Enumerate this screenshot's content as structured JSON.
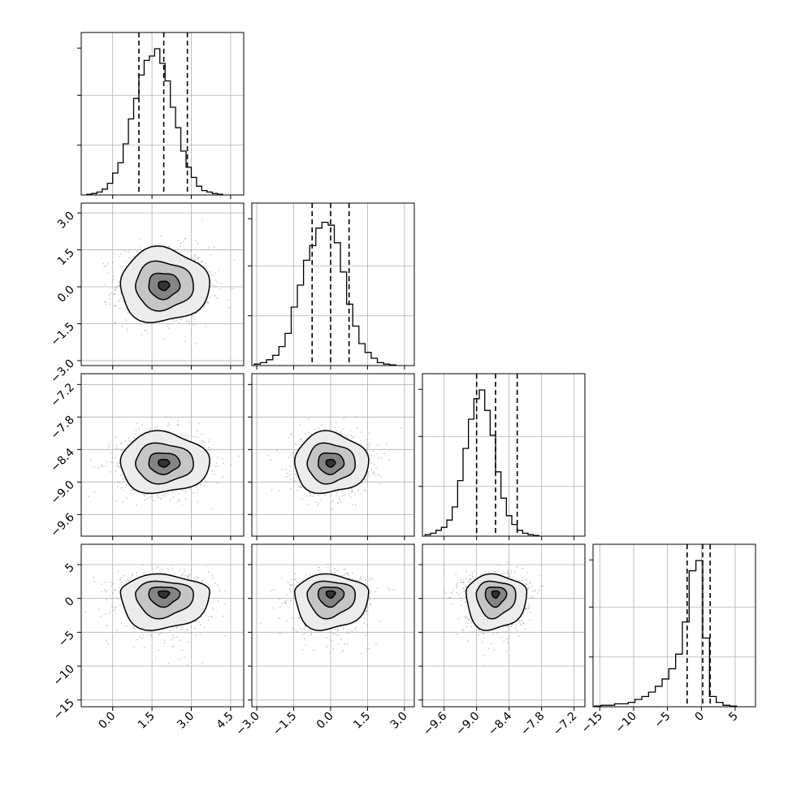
{
  "chart_data": {
    "type": "corner",
    "parameters": 4,
    "style": {
      "background": "#ffffff",
      "axes_color": "#000000",
      "grid_color": "#b0b0b0",
      "scatter_color": "#9e9e9e",
      "grid": true,
      "quantile_line_style": "dashed"
    },
    "axes": [
      {
        "range": [
          -1.2,
          5.0
        ],
        "ticks": [
          0.0,
          1.5,
          3.0,
          4.5
        ],
        "tick_labels": [
          "0.0",
          "1.5",
          "3.0",
          "4.5"
        ]
      },
      {
        "range": [
          -3.2,
          3.4
        ],
        "ticks": [
          -3.0,
          -1.5,
          0.0,
          1.5,
          3.0
        ],
        "tick_labels": [
          "−3.0",
          "−1.5",
          "0.0",
          "1.5",
          "3.0"
        ]
      },
      {
        "range": [
          -10.0,
          -7.0
        ],
        "ticks": [
          -9.6,
          -9.0,
          -8.4,
          -7.8,
          -7.2
        ],
        "tick_labels": [
          "−9.6",
          "−9.0",
          "−8.4",
          "−7.8",
          "−7.2"
        ]
      },
      {
        "range": [
          -16.0,
          8.0
        ],
        "ticks": [
          -15,
          -10,
          -5,
          0,
          5
        ],
        "tick_labels": [
          "−15",
          "−10",
          "−5",
          "0",
          "5"
        ]
      }
    ],
    "histograms": [
      {
        "bin_start": -1.0,
        "bin_width": 0.2,
        "max": 1.0,
        "heights": [
          0.005,
          0.01,
          0.02,
          0.04,
          0.08,
          0.15,
          0.22,
          0.35,
          0.52,
          0.66,
          0.82,
          0.92,
          0.95,
          1.0,
          0.9,
          0.78,
          0.6,
          0.46,
          0.3,
          0.19,
          0.12,
          0.06,
          0.03,
          0.02,
          0.01,
          0.005
        ],
        "quantiles": [
          1.0,
          1.95,
          2.85
        ]
      },
      {
        "bin_start": -3.1,
        "bin_width": 0.25,
        "max": 1.0,
        "heights": [
          0.01,
          0.02,
          0.04,
          0.07,
          0.13,
          0.22,
          0.4,
          0.55,
          0.72,
          0.82,
          0.94,
          0.98,
          0.96,
          0.84,
          0.64,
          0.42,
          0.27,
          0.15,
          0.09,
          0.05,
          0.02,
          0.01,
          0.005
        ],
        "quantiles": [
          -0.75,
          0.0,
          0.75
        ]
      },
      {
        "bin_start": -9.95,
        "bin_width": 0.1,
        "max": 1.0,
        "heights": [
          0.01,
          0.02,
          0.04,
          0.06,
          0.11,
          0.2,
          0.38,
          0.6,
          0.8,
          0.94,
          1.0,
          0.86,
          0.69,
          0.44,
          0.26,
          0.14,
          0.08,
          0.04,
          0.02,
          0.01,
          0.005
        ],
        "quantiles": [
          -9.0,
          -8.65,
          -8.25
        ]
      },
      {
        "bin_start": -15.8,
        "bin_width": 1.0,
        "max": 1.0,
        "heights": [
          0.005,
          0.01,
          0.01,
          0.02,
          0.02,
          0.03,
          0.05,
          0.07,
          0.1,
          0.14,
          0.19,
          0.26,
          0.36,
          0.58,
          0.93,
          1.0,
          0.47,
          0.07,
          0.03,
          0.01,
          0.005
        ],
        "quantiles": [
          -2.1,
          0.2,
          1.3
        ]
      }
    ],
    "pairs": [
      {
        "row": 1,
        "col": 0,
        "mean": [
          1.95,
          0.05
        ],
        "sigma": [
          0.85,
          0.75
        ],
        "shape": "round"
      },
      {
        "row": 2,
        "col": 0,
        "mean": [
          1.95,
          -8.65
        ],
        "sigma": [
          0.85,
          0.28
        ],
        "shape": "round"
      },
      {
        "row": 2,
        "col": 1,
        "mean": [
          0.0,
          -8.65
        ],
        "sigma": [
          0.75,
          0.28
        ],
        "shape": "round"
      },
      {
        "row": 3,
        "col": 0,
        "mean": [
          1.95,
          0.8
        ],
        "sigma": [
          0.85,
          2.4
        ],
        "shape": "skew"
      },
      {
        "row": 3,
        "col": 1,
        "mean": [
          0.0,
          0.8
        ],
        "sigma": [
          0.75,
          2.4
        ],
        "shape": "skew"
      },
      {
        "row": 3,
        "col": 2,
        "mean": [
          -8.65,
          0.8
        ],
        "sigma": [
          0.28,
          2.4
        ],
        "shape": "skew"
      }
    ],
    "contour_levels": [
      0.25,
      0.7,
      1.3,
      2.0
    ]
  }
}
